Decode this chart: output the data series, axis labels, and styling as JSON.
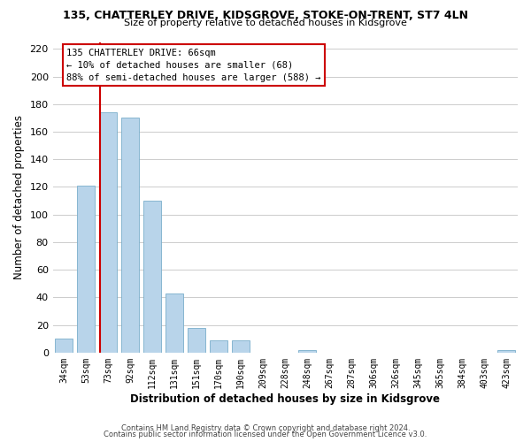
{
  "title1": "135, CHATTERLEY DRIVE, KIDSGROVE, STOKE-ON-TRENT, ST7 4LN",
  "title2": "Size of property relative to detached houses in Kidsgrove",
  "xlabel": "Distribution of detached houses by size in Kidsgrove",
  "ylabel": "Number of detached properties",
  "categories": [
    "34sqm",
    "53sqm",
    "73sqm",
    "92sqm",
    "112sqm",
    "131sqm",
    "151sqm",
    "170sqm",
    "190sqm",
    "209sqm",
    "228sqm",
    "248sqm",
    "267sqm",
    "287sqm",
    "306sqm",
    "326sqm",
    "345sqm",
    "365sqm",
    "384sqm",
    "403sqm",
    "423sqm"
  ],
  "values": [
    10,
    121,
    174,
    170,
    110,
    43,
    18,
    9,
    9,
    0,
    0,
    2,
    0,
    0,
    0,
    0,
    0,
    0,
    0,
    0,
    2
  ],
  "bar_color": "#b8d4ea",
  "bar_edge_color": "#7aaecb",
  "subject_line_color": "#cc0000",
  "ylim": [
    0,
    225
  ],
  "yticks": [
    0,
    20,
    40,
    60,
    80,
    100,
    120,
    140,
    160,
    180,
    200,
    220
  ],
  "annotation_title": "135 CHATTERLEY DRIVE: 66sqm",
  "annotation_line1": "← 10% of detached houses are smaller (68)",
  "annotation_line2": "88% of semi-detached houses are larger (588) →",
  "annotation_box_color": "#ffffff",
  "annotation_box_edge": "#cc0000",
  "footer1": "Contains HM Land Registry data © Crown copyright and database right 2024.",
  "footer2": "Contains public sector information licensed under the Open Government Licence v3.0.",
  "bg_color": "#ffffff",
  "grid_color": "#cccccc",
  "line_x_index": 1.65
}
